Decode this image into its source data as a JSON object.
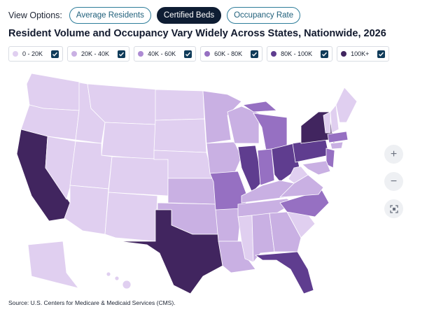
{
  "view_options": {
    "label": "View Options:",
    "buttons": [
      {
        "label": "Average Residents",
        "active": false
      },
      {
        "label": "Certified Beds",
        "active": true
      },
      {
        "label": "Occupancy Rate",
        "active": false
      }
    ]
  },
  "title": "Resident Volume and Occupancy Vary Widely Across States, Nationwide, 2026",
  "legend": [
    {
      "label": "0 - 20K",
      "color": "#e0cff0",
      "checked": true
    },
    {
      "label": "20K - 40K",
      "color": "#c9b0e3",
      "checked": true
    },
    {
      "label": "40K - 60K",
      "color": "#ad8bd3",
      "checked": true
    },
    {
      "label": "60K - 80K",
      "color": "#9670c2",
      "checked": true
    },
    {
      "label": "80K - 100K",
      "color": "#5f3d8f",
      "checked": true
    },
    {
      "label": "100K+",
      "color": "#41255f",
      "checked": true
    }
  ],
  "source": "Source: U.S. Centers for Medicare & Medicaid Services (CMS)."
}
